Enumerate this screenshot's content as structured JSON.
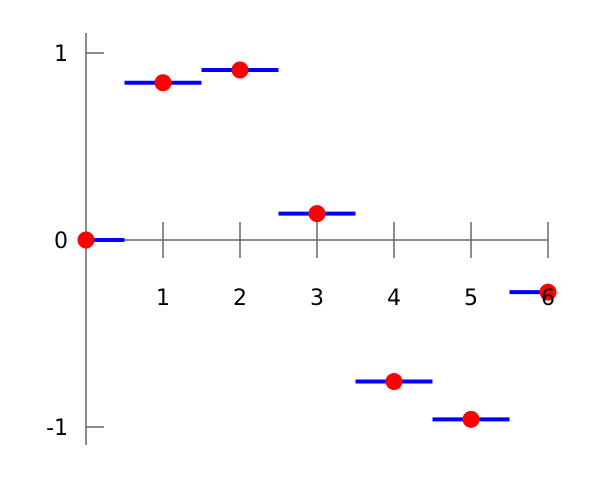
{
  "chart_data": {
    "type": "scatter",
    "title": "",
    "xlabel": "",
    "ylabel": "",
    "xlim": [
      0,
      6
    ],
    "ylim": [
      -1.1,
      1.1
    ],
    "grid": false,
    "x_ticks": [
      "1",
      "2",
      "3",
      "4",
      "5",
      "6"
    ],
    "x_tick_values": [
      1,
      2,
      3,
      4,
      5,
      6
    ],
    "y_ticks": [
      "1",
      "0",
      "-1"
    ],
    "y_tick_values": [
      1,
      0,
      -1
    ],
    "x": [
      0,
      1,
      2,
      3,
      4,
      5,
      6
    ],
    "values": [
      0,
      0.841,
      0.909,
      0.141,
      -0.757,
      -0.959,
      -0.279
    ],
    "step_half_width": 0.5,
    "colors": {
      "points": "#ff0000",
      "steps": "#0000ff",
      "axes": "#666666"
    }
  }
}
